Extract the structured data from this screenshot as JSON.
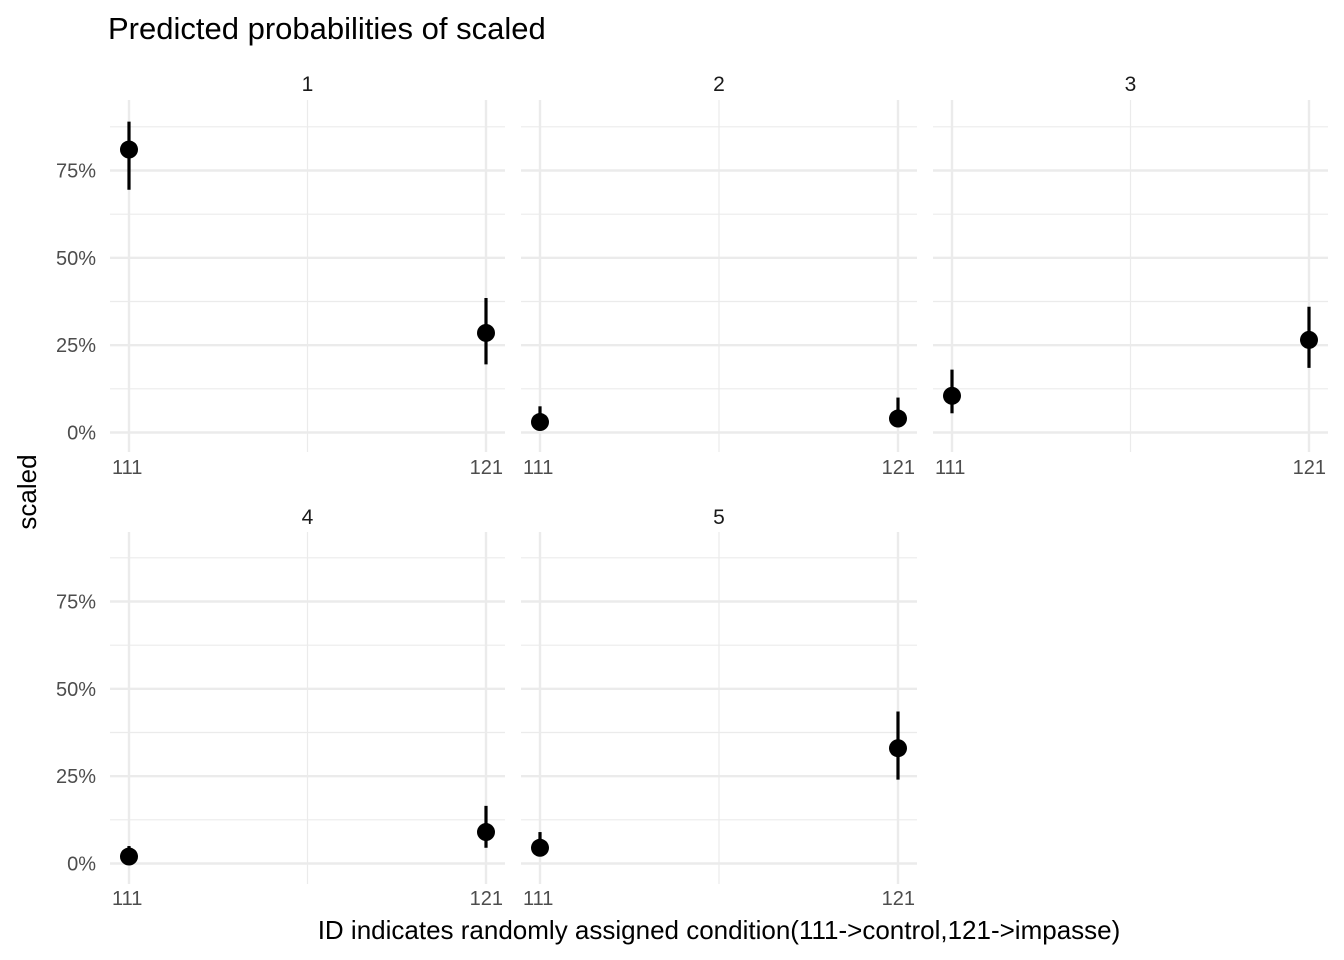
{
  "chart_data": {
    "type": "scatter",
    "title": "Predicted probabilities of scaled",
    "xlabel": "ID indicates randomly assigned condition(111->control,121->impasse)",
    "ylabel": "scaled",
    "categories": [
      "111",
      "121"
    ],
    "y_ticks": [
      "0%",
      "25%",
      "50%",
      "75%"
    ],
    "ylim": [
      0,
      0.92
    ],
    "grid": true,
    "facets": [
      {
        "label": "1",
        "points": [
          {
            "x": "111",
            "y": 0.81,
            "lo": 0.695,
            "hi": 0.89
          },
          {
            "x": "121",
            "y": 0.285,
            "lo": 0.195,
            "hi": 0.385
          }
        ]
      },
      {
        "label": "2",
        "points": [
          {
            "x": "111",
            "y": 0.03,
            "lo": 0.01,
            "hi": 0.075
          },
          {
            "x": "121",
            "y": 0.04,
            "lo": 0.015,
            "hi": 0.1
          }
        ]
      },
      {
        "label": "3",
        "points": [
          {
            "x": "111",
            "y": 0.105,
            "lo": 0.055,
            "hi": 0.18
          },
          {
            "x": "121",
            "y": 0.265,
            "lo": 0.185,
            "hi": 0.36
          }
        ]
      },
      {
        "label": "4",
        "points": [
          {
            "x": "111",
            "y": 0.02,
            "lo": 0.005,
            "hi": 0.05
          },
          {
            "x": "121",
            "y": 0.09,
            "lo": 0.045,
            "hi": 0.165
          }
        ]
      },
      {
        "label": "5",
        "points": [
          {
            "x": "111",
            "y": 0.045,
            "lo": 0.02,
            "hi": 0.09
          },
          {
            "x": "121",
            "y": 0.33,
            "lo": 0.24,
            "hi": 0.435
          }
        ]
      }
    ]
  }
}
